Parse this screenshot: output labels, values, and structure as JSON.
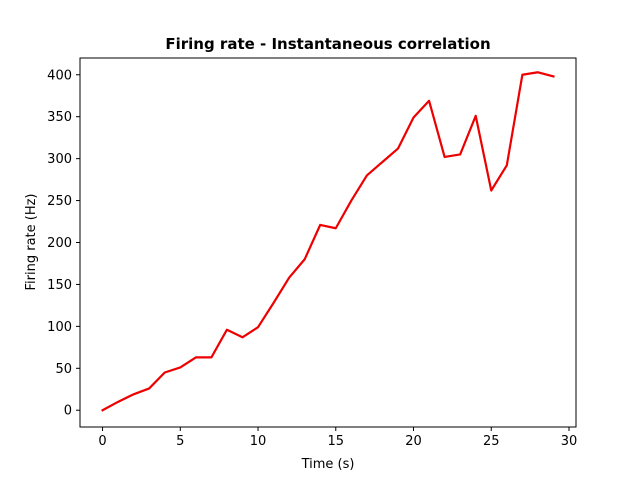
{
  "chart_data": {
    "type": "line",
    "title": "Firing rate - Instantaneous correlation",
    "xlabel": "Time (s)",
    "ylabel": "Firing rate (Hz)",
    "xlim": [
      -1.45,
      30.45
    ],
    "ylim": [
      -20,
      420
    ],
    "xticks": [
      0,
      5,
      10,
      15,
      20,
      25,
      30
    ],
    "yticks": [
      0,
      50,
      100,
      150,
      200,
      250,
      300,
      350,
      400
    ],
    "xtick_labels": [
      "0",
      "5",
      "10",
      "15",
      "20",
      "25",
      "30"
    ],
    "ytick_labels": [
      "0",
      "50",
      "100",
      "150",
      "200",
      "250",
      "300",
      "350",
      "400"
    ],
    "grid": false,
    "series": [
      {
        "name": "firing rate",
        "color": "#ee0000",
        "x": [
          0,
          1,
          2,
          3,
          4,
          5,
          6,
          7,
          8,
          9,
          10,
          11,
          12,
          13,
          14,
          15,
          16,
          17,
          18,
          19,
          20,
          21,
          22,
          23,
          24,
          25,
          26,
          27,
          28,
          29
        ],
        "values": [
          0,
          10,
          19,
          26,
          45,
          51,
          63,
          63,
          96,
          87,
          99,
          128,
          158,
          180,
          221,
          217,
          250,
          280,
          296,
          312,
          349,
          369,
          302,
          305,
          351,
          262,
          292,
          400,
          403,
          398
        ]
      }
    ]
  }
}
